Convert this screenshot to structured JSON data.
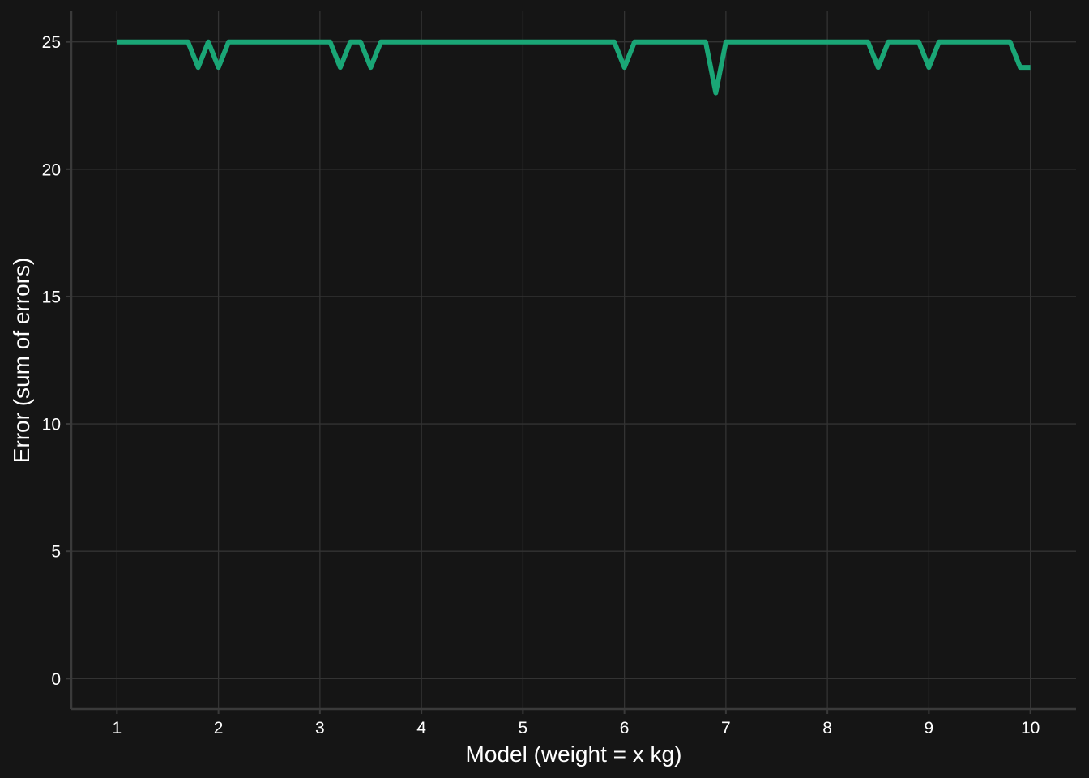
{
  "chart_data": {
    "type": "line",
    "xlabel": "Model (weight = x kg)",
    "ylabel": "Error (sum of errors)",
    "xlim": [
      0.55,
      10.45
    ],
    "ylim": [
      -1.2,
      26.2
    ],
    "x_ticks": [
      1,
      2,
      3,
      4,
      5,
      6,
      7,
      8,
      9,
      10
    ],
    "y_ticks": [
      0,
      5,
      10,
      15,
      20,
      25
    ],
    "x_tick_labels": [
      "1",
      "2",
      "3",
      "4",
      "5",
      "6",
      "7",
      "8",
      "9",
      "10"
    ],
    "y_tick_labels": [
      "0",
      "5",
      "10",
      "15",
      "20",
      "25"
    ],
    "grid": true,
    "line_color": "#1aa676",
    "background_color": "#151515",
    "series": [
      {
        "x": [
          1.0,
          1.1,
          1.2,
          1.3,
          1.4,
          1.5,
          1.6,
          1.7,
          1.8,
          1.9,
          2.0,
          2.1,
          2.2,
          2.3,
          2.4,
          2.5,
          2.6,
          2.7,
          2.8,
          2.9,
          3.0,
          3.1,
          3.2,
          3.3,
          3.4,
          3.5,
          3.6,
          3.7,
          3.8,
          3.9,
          4.0,
          4.1,
          4.2,
          4.3,
          4.4,
          4.5,
          4.6,
          4.7,
          4.8,
          4.9,
          5.0,
          5.1,
          5.2,
          5.3,
          5.4,
          5.5,
          5.6,
          5.7,
          5.8,
          5.9,
          6.0,
          6.1,
          6.2,
          6.3,
          6.4,
          6.5,
          6.6,
          6.7,
          6.8,
          6.9,
          7.0,
          7.1,
          7.2,
          7.3,
          7.4,
          7.5,
          7.6,
          7.7,
          7.8,
          7.9,
          8.0,
          8.1,
          8.2,
          8.3,
          8.4,
          8.5,
          8.6,
          8.7,
          8.8,
          8.9,
          9.0,
          9.1,
          9.2,
          9.3,
          9.4,
          9.5,
          9.6,
          9.7,
          9.8,
          9.9,
          10.0
        ],
        "y": [
          25,
          25,
          25,
          25,
          25,
          25,
          25,
          25,
          24,
          25,
          24,
          25,
          25,
          25,
          25,
          25,
          25,
          25,
          25,
          25,
          25,
          25,
          24,
          25,
          25,
          24,
          25,
          25,
          25,
          25,
          25,
          25,
          25,
          25,
          25,
          25,
          25,
          25,
          25,
          25,
          25,
          25,
          25,
          25,
          25,
          25,
          25,
          25,
          25,
          25,
          24,
          25,
          25,
          25,
          25,
          25,
          25,
          25,
          25,
          23,
          25,
          25,
          25,
          25,
          25,
          25,
          25,
          25,
          25,
          25,
          25,
          25,
          25,
          25,
          25,
          24,
          25,
          25,
          25,
          25,
          24,
          25,
          25,
          25,
          25,
          25,
          25,
          25,
          25,
          24,
          24
        ]
      }
    ]
  }
}
